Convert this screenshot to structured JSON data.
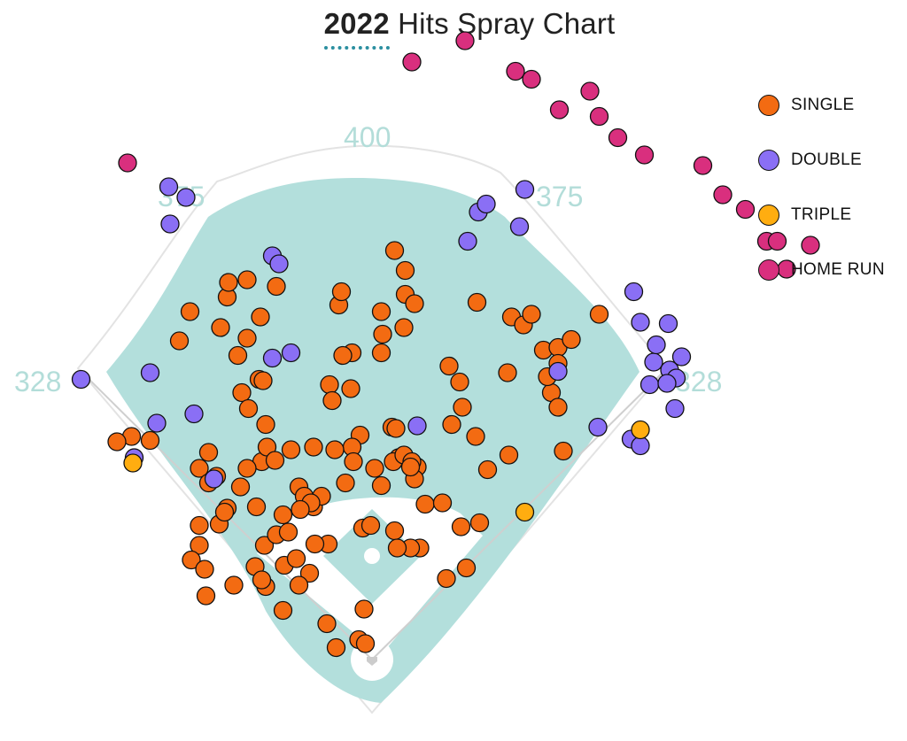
{
  "title": {
    "year": "2022",
    "rest": " Hits Spray Chart"
  },
  "colors": {
    "field": "#b3dfdc",
    "infield": "#ffffff",
    "wall": "#e3e3e3",
    "foul_line": "#cfcfcf",
    "distance_label": "#b3ddd9"
  },
  "legend": [
    {
      "label": "SINGLE",
      "color": "#f36b12"
    },
    {
      "label": "DOUBLE",
      "color": "#8a6ff5"
    },
    {
      "label": "TRIPLE",
      "color": "#ffad10"
    },
    {
      "label": "HOME RUN",
      "color": "#d92f7e"
    }
  ],
  "chart_data": {
    "type": "scatter",
    "title": "2022 Hits Spray Chart",
    "wall_distances": [
      {
        "label": "328",
        "position": "left-field-line"
      },
      {
        "label": "375",
        "position": "left-center"
      },
      {
        "label": "400",
        "position": "center-field"
      },
      {
        "label": "375",
        "position": "right-center"
      },
      {
        "label": "328",
        "position": "right-field-line"
      }
    ],
    "coordinates_note": "hit landing points in feet from home plate (x: + toward right field, y: toward center field)",
    "series": [
      {
        "name": "SINGLE",
        "points": [
          [
            -94,
            286
          ],
          [
            -137,
            262
          ],
          [
            -94,
            242
          ],
          [
            -181,
            168
          ],
          [
            -192,
            164
          ],
          [
            -145,
            240
          ],
          [
            -101,
            229
          ],
          [
            -98,
            201
          ],
          [
            -80,
            177
          ],
          [
            -85,
            211
          ],
          [
            -83,
            149
          ],
          [
            -79,
            160
          ],
          [
            -94,
            144
          ],
          [
            -117,
            138
          ],
          [
            -109,
            114
          ],
          [
            -87,
            115
          ],
          [
            -67,
            109
          ],
          [
            -55,
            130
          ],
          [
            -61,
            158
          ],
          [
            -51,
            123
          ],
          [
            -44,
            115
          ],
          [
            -44,
            160
          ],
          [
            -38,
            123
          ],
          [
            -33,
            87
          ],
          [
            -20,
            133
          ],
          [
            -7,
            99
          ],
          [
            -1,
            101
          ],
          [
            -9,
            169
          ],
          [
            2,
            144
          ],
          [
            7,
            131
          ],
          [
            20,
            152
          ],
          [
            15,
            175
          ],
          [
            16,
            149
          ],
          [
            24,
            154
          ],
          [
            34,
            145
          ],
          [
            18,
            174
          ],
          [
            32,
            136
          ],
          [
            30,
            149
          ],
          [
            40,
            117
          ],
          [
            53,
            118
          ],
          [
            67,
            100
          ],
          [
            71,
            69
          ],
          [
            81,
            103
          ],
          [
            87,
            143
          ],
          [
            78,
            168
          ],
          [
            103,
            154
          ],
          [
            68,
            190
          ],
          [
            60,
            177
          ],
          [
            66,
            209
          ],
          [
            58,
            221
          ],
          [
            105,
            258
          ],
          [
            114,
            252
          ],
          [
            120,
            260
          ],
          [
            102,
            216
          ],
          [
            79,
            269
          ],
          [
            129,
            233
          ],
          [
            140,
            235
          ],
          [
            140,
            223
          ],
          [
            135,
            201
          ],
          [
            140,
            190
          ],
          [
            132,
            213
          ],
          [
            171,
            260
          ],
          [
            144,
            157
          ],
          [
            150,
            241
          ],
          [
            7,
            231
          ],
          [
            24,
            250
          ],
          [
            7,
            262
          ],
          [
            -25,
            267
          ],
          [
            -23,
            277
          ],
          [
            25,
            293
          ],
          [
            25,
            275
          ],
          [
            32,
            268
          ],
          [
            -72,
            281
          ],
          [
            -84,
            258
          ],
          [
            -82,
            210
          ],
          [
            17,
            308
          ],
          [
            -32,
            207
          ],
          [
            -16,
            204
          ],
          [
            -15,
            231
          ],
          [
            -15,
            160
          ],
          [
            36,
            84
          ],
          [
            29,
            84
          ],
          [
            17,
            97
          ],
          [
            -14,
            149
          ],
          [
            -123,
            156
          ],
          [
            -130,
            144
          ],
          [
            -167,
            165
          ],
          [
            -109,
            273
          ],
          [
            -108,
            284
          ],
          [
            -130,
            86
          ],
          [
            -115,
            102
          ],
          [
            -130,
            101
          ],
          [
            -123,
            133
          ],
          [
            -99,
            130
          ],
          [
            -111,
            111
          ],
          [
            -81,
            86
          ],
          [
            -72,
            94
          ],
          [
            -63,
            96
          ],
          [
            -46,
            118
          ],
          [
            -47,
            65
          ],
          [
            -80,
            55
          ],
          [
            -136,
            75
          ],
          [
            -125,
            48
          ],
          [
            -88,
            70
          ],
          [
            -55,
            56
          ],
          [
            -66,
            71
          ],
          [
            -126,
            68
          ],
          [
            -104,
            56
          ],
          [
            -57,
            76
          ],
          [
            -6,
            38
          ],
          [
            -10,
            15
          ],
          [
            19,
            84
          ],
          [
            29,
            145
          ],
          [
            -22,
            229
          ],
          [
            56,
            61
          ],
          [
            -93,
            189
          ],
          [
            8,
            245
          ],
          [
            -27,
            9
          ],
          [
            -5,
            12
          ],
          [
            -34,
            27
          ],
          [
            -67,
            37
          ],
          [
            -83,
            60
          ],
          [
            -28,
            158
          ],
          [
            -43,
            87
          ],
          [
            -30,
            195
          ],
          [
            -114,
            250
          ],
          [
            -73,
            150
          ],
          [
            -54,
            113
          ]
        ]
      },
      {
        "name": "DOUBLE",
        "points": [
          [
            -219,
            211
          ],
          [
            -153,
            356
          ],
          [
            -140,
            348
          ],
          [
            -152,
            328
          ],
          [
            -162,
            178
          ],
          [
            -167,
            216
          ],
          [
            -179,
            152
          ],
          [
            -134,
            185
          ],
          [
            -119,
            136
          ],
          [
            -75,
            304
          ],
          [
            -70,
            298
          ],
          [
            -61,
            231
          ],
          [
            72,
            315
          ],
          [
            80,
            337
          ],
          [
            86,
            343
          ],
          [
            115,
            354
          ],
          [
            111,
            326
          ],
          [
            140,
            217
          ],
          [
            170,
            175
          ],
          [
            195,
            166
          ],
          [
            209,
            207
          ],
          [
            212,
            224
          ],
          [
            202,
            161
          ],
          [
            224,
            218
          ],
          [
            229,
            212
          ],
          [
            228,
            189
          ],
          [
            214,
            237
          ],
          [
            202,
            254
          ],
          [
            197,
            277
          ],
          [
            222,
            208
          ],
          [
            233,
            228
          ],
          [
            223,
            253
          ],
          [
            34,
            176
          ],
          [
            -75,
            227
          ]
        ]
      },
      {
        "name": "TRIPLE",
        "points": [
          [
            -180,
            148
          ],
          [
            202,
            173
          ],
          [
            115,
            111
          ]
        ]
      },
      {
        "name": "HOME RUN",
        "points": [
          [
            -184,
            374
          ],
          [
            30,
            450
          ],
          [
            70,
            466
          ],
          [
            108,
            443
          ],
          [
            120,
            437
          ],
          [
            141,
            414
          ],
          [
            164,
            428
          ],
          [
            171,
            409
          ],
          [
            185,
            393
          ],
          [
            205,
            380
          ],
          [
            249,
            372
          ],
          [
            264,
            350
          ],
          [
            281,
            339
          ],
          [
            297,
            315
          ],
          [
            305,
            315
          ],
          [
            312,
            294
          ],
          [
            330,
            312
          ]
        ]
      }
    ]
  }
}
